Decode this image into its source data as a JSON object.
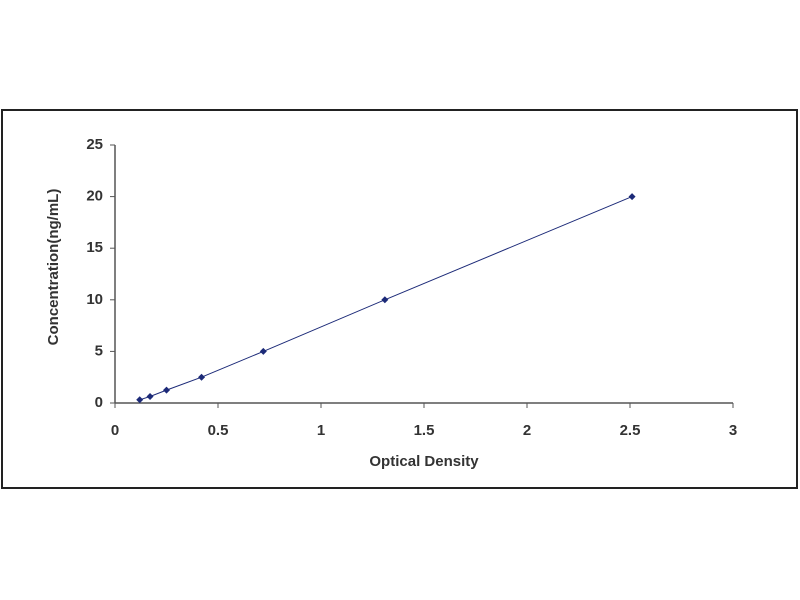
{
  "chart_data": {
    "type": "line",
    "xlabel": "Optical Density",
    "ylabel": "Concentration(ng/mL)",
    "x": [
      0.12,
      0.17,
      0.25,
      0.42,
      0.72,
      1.31,
      2.51
    ],
    "series": [
      {
        "color": "#1c2a78",
        "values": [
          0.31,
          0.63,
          1.25,
          2.5,
          5,
          10,
          20
        ]
      }
    ],
    "xlim": [
      0,
      3
    ],
    "xticks": [
      0,
      0.5,
      1,
      1.5,
      2,
      2.5,
      3
    ],
    "ylim": [
      0,
      25
    ],
    "yticks": [
      0,
      5,
      10,
      15,
      20,
      25
    ],
    "grid": false
  }
}
